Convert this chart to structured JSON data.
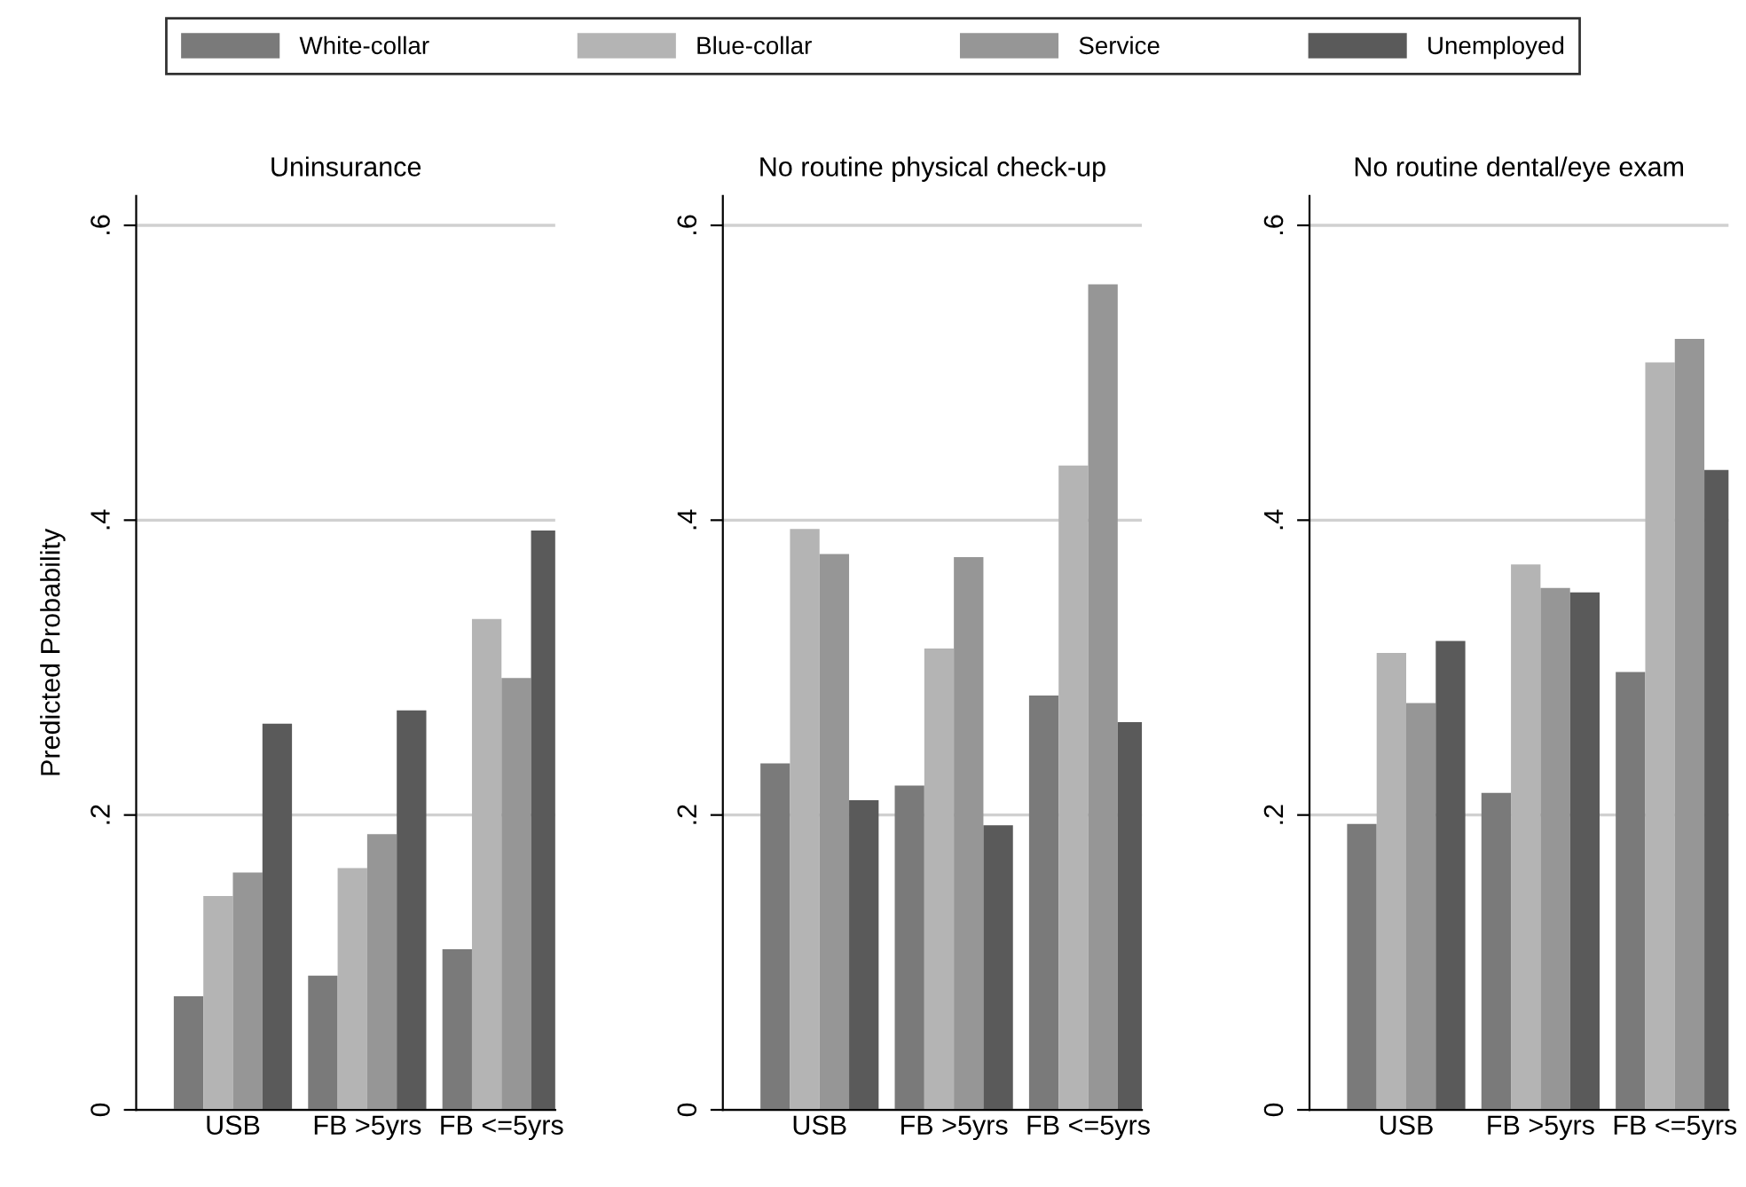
{
  "chart_data": [
    {
      "type": "bar",
      "title": "Uninsurance",
      "ylabel": "Predicted Probability",
      "categories": [
        "USB",
        "FB >5yrs",
        "FB <=5yrs"
      ],
      "ylim": [
        0,
        0.62
      ],
      "yticks": [
        {
          "value": 0,
          "label": "0"
        },
        {
          "value": 0.2,
          "label": ".2"
        },
        {
          "value": 0.4,
          "label": ".4"
        },
        {
          "value": 0.6,
          "label": ".6"
        }
      ],
      "grid": "y",
      "legend": "top",
      "series": [
        {
          "name": "White-collar",
          "color": "#7a7a7a",
          "values": [
            0.077,
            0.091,
            0.109
          ]
        },
        {
          "name": "Blue-collar",
          "color": "#b4b4b4",
          "values": [
            0.145,
            0.164,
            0.333
          ]
        },
        {
          "name": "Service",
          "color": "#969696",
          "values": [
            0.161,
            0.187,
            0.293
          ]
        },
        {
          "name": "Unemployed",
          "color": "#5a5a5a",
          "values": [
            0.262,
            0.271,
            0.393
          ]
        }
      ]
    },
    {
      "type": "bar",
      "title": "No routine physical check-up",
      "categories": [
        "USB",
        "FB >5yrs",
        "FB <=5yrs"
      ],
      "ylim": [
        0,
        0.62
      ],
      "yticks": [
        {
          "value": 0,
          "label": "0"
        },
        {
          "value": 0.2,
          "label": ".2"
        },
        {
          "value": 0.4,
          "label": ".4"
        },
        {
          "value": 0.6,
          "label": ".6"
        }
      ],
      "grid": "y",
      "series": [
        {
          "color": "#7a7a7a",
          "values": [
            0.235,
            0.22,
            0.281
          ]
        },
        {
          "color": "#b4b4b4",
          "values": [
            0.394,
            0.313,
            0.437
          ]
        },
        {
          "color": "#969696",
          "values": [
            0.377,
            0.375,
            0.56
          ]
        },
        {
          "color": "#5a5a5a",
          "values": [
            0.21,
            0.193,
            0.263
          ]
        }
      ]
    },
    {
      "type": "bar",
      "title": "No routine dental/eye exam",
      "categories": [
        "USB",
        "FB >5yrs",
        "FB <=5yrs"
      ],
      "ylim": [
        0,
        0.62
      ],
      "yticks": [
        {
          "value": 0,
          "label": "0"
        },
        {
          "value": 0.2,
          "label": ".2"
        },
        {
          "value": 0.4,
          "label": ".4"
        },
        {
          "value": 0.6,
          "label": ".6"
        }
      ],
      "grid": "y",
      "series": [
        {
          "color": "#7a7a7a",
          "values": [
            0.194,
            0.215,
            0.297
          ]
        },
        {
          "color": "#b4b4b4",
          "values": [
            0.31,
            0.37,
            0.507
          ]
        },
        {
          "color": "#969696",
          "values": [
            0.276,
            0.354,
            0.523
          ]
        },
        {
          "color": "#5a5a5a",
          "values": [
            0.318,
            0.351,
            0.434
          ]
        }
      ]
    }
  ]
}
